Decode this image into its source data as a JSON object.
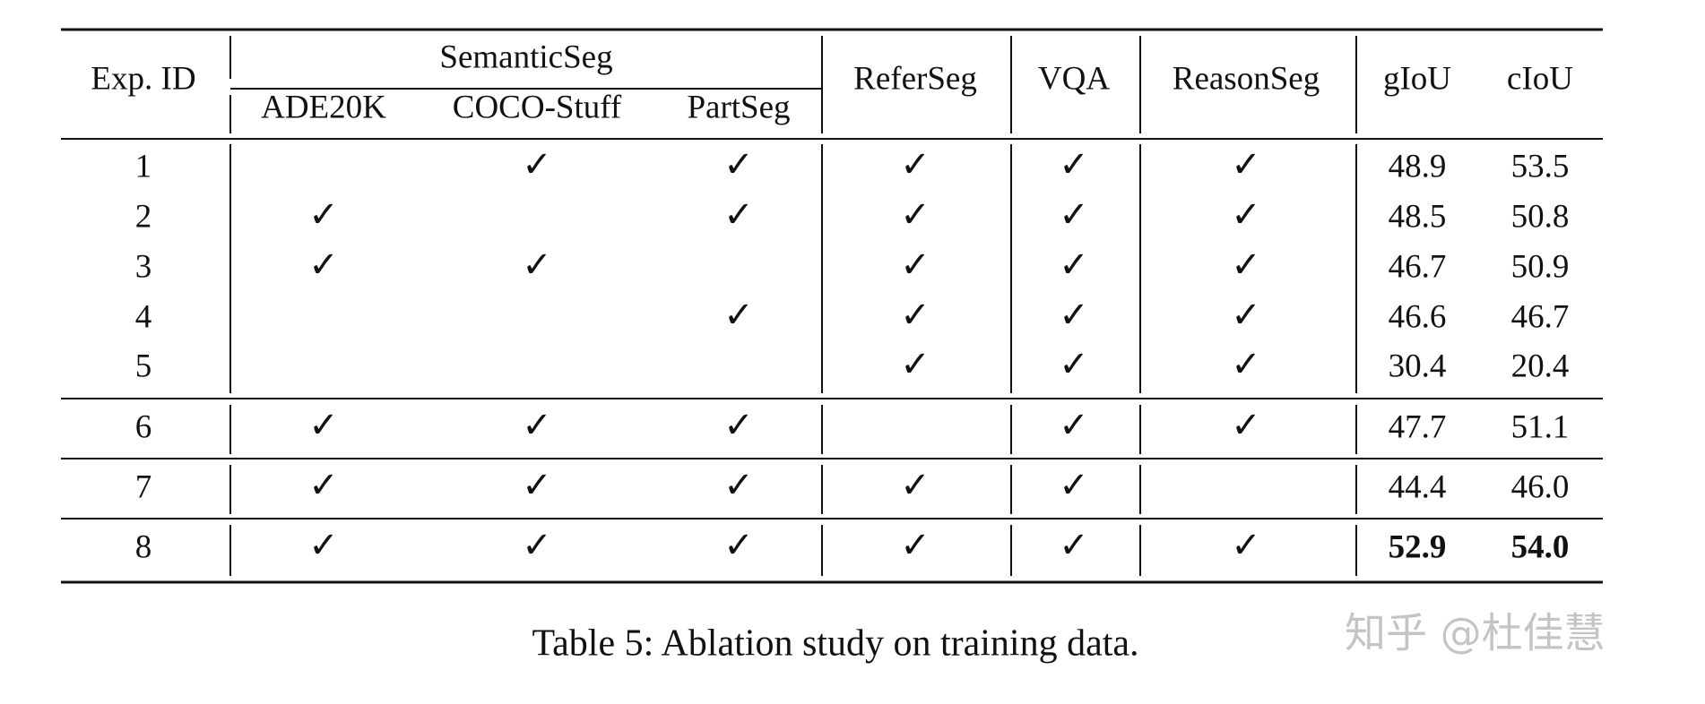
{
  "table": {
    "header": {
      "exp_id": "Exp. ID",
      "group": "SemanticSeg",
      "sub": [
        "ADE20K",
        "COCO-Stuff",
        "PartSeg"
      ],
      "columns": [
        "ReferSeg",
        "VQA",
        "ReasonSeg",
        "gIoU",
        "cIoU"
      ]
    },
    "rows": [
      [
        "1",
        null,
        "✓",
        "✓",
        "✓",
        "✓",
        "✓",
        "48.9",
        "53.5"
      ],
      [
        "2",
        "✓",
        null,
        "✓",
        "✓",
        "✓",
        "✓",
        "48.5",
        "50.8"
      ],
      [
        "3",
        "✓",
        "✓",
        null,
        "✓",
        "✓",
        "✓",
        "46.7",
        "50.9"
      ],
      [
        "4",
        null,
        null,
        "✓",
        "✓",
        "✓",
        "✓",
        "46.6",
        "46.7"
      ],
      [
        "5",
        null,
        null,
        null,
        "✓",
        "✓",
        "✓",
        "30.4",
        "20.4"
      ],
      [
        "6",
        "✓",
        "✓",
        "✓",
        null,
        "✓",
        "✓",
        "47.7",
        "51.1"
      ],
      [
        "7",
        "✓",
        "✓",
        "✓",
        "✓",
        "✓",
        null,
        "44.4",
        "46.0"
      ],
      [
        "8",
        "✓",
        "✓",
        "✓",
        "✓",
        "✓",
        "✓",
        "52.9",
        "54.0"
      ]
    ]
  },
  "caption": "Table 5: Ablation study on training data.",
  "watermark": "知乎 @杜佳慧"
}
